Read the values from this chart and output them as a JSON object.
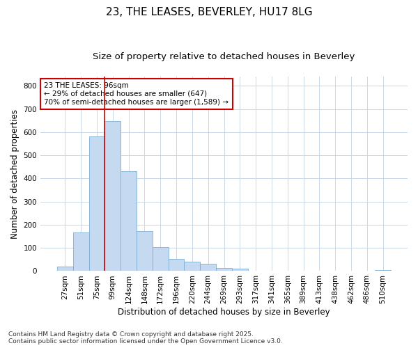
{
  "title_line1": "23, THE LEASES, BEVERLEY, HU17 8LG",
  "title_line2": "Size of property relative to detached houses in Beverley",
  "xlabel": "Distribution of detached houses by size in Beverley",
  "ylabel": "Number of detached properties",
  "bar_color": "#c5d9f0",
  "bar_edge_color": "#7badd4",
  "background_color": "#ffffff",
  "plot_bg_color": "#ffffff",
  "grid_color": "#c8d8e8",
  "categories": [
    "27sqm",
    "51sqm",
    "75sqm",
    "99sqm",
    "124sqm",
    "148sqm",
    "172sqm",
    "196sqm",
    "220sqm",
    "244sqm",
    "269sqm",
    "293sqm",
    "317sqm",
    "341sqm",
    "365sqm",
    "389sqm",
    "413sqm",
    "438sqm",
    "462sqm",
    "486sqm",
    "510sqm"
  ],
  "values": [
    18,
    168,
    583,
    647,
    430,
    172,
    105,
    52,
    40,
    32,
    12,
    10,
    0,
    0,
    0,
    0,
    0,
    0,
    0,
    0,
    5
  ],
  "vline_x": 2.5,
  "vline_color": "#cc0000",
  "annotation_text": "23 THE LEASES: 96sqm\n← 29% of detached houses are smaller (647)\n70% of semi-detached houses are larger (1,589) →",
  "annotation_box_color": "#ffffff",
  "annotation_box_edge_color": "#cc0000",
  "ylim": [
    0,
    840
  ],
  "yticks": [
    0,
    100,
    200,
    300,
    400,
    500,
    600,
    700,
    800
  ],
  "footer_line1": "Contains HM Land Registry data © Crown copyright and database right 2025.",
  "footer_line2": "Contains public sector information licensed under the Open Government Licence v3.0.",
  "title_fontsize": 11,
  "subtitle_fontsize": 9.5,
  "axis_label_fontsize": 8.5,
  "tick_fontsize": 7.5,
  "annotation_fontsize": 7.5,
  "footer_fontsize": 6.5
}
